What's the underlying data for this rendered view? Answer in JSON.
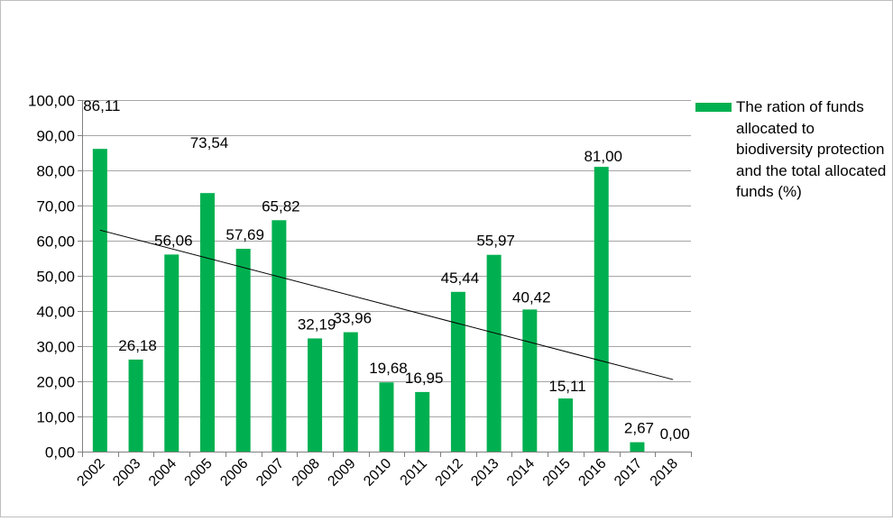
{
  "chart_data": {
    "type": "bar",
    "title": "",
    "xlabel": "",
    "ylabel": "",
    "categories": [
      "2002",
      "2003",
      "2004",
      "2005",
      "2006",
      "2007",
      "2008",
      "2009",
      "2010",
      "2011",
      "2012",
      "2013",
      "2014",
      "2015",
      "2016",
      "2017",
      "2018"
    ],
    "series": [
      {
        "name": "The ration of funds allocated to biodiversity protection and the total allocated funds (%)",
        "values": [
          86.11,
          26.18,
          56.06,
          73.54,
          57.69,
          65.82,
          32.19,
          33.96,
          19.68,
          16.95,
          45.44,
          55.97,
          40.42,
          15.11,
          81.0,
          2.67,
          0.0
        ],
        "data_labels": [
          "86,11",
          "26,18",
          "56,06",
          "73,54",
          "57,69",
          "65,82",
          "32,19",
          "33,96",
          "19,68",
          "16,95",
          "45,44",
          "55,97",
          "40,42",
          "15,11",
          "81,00",
          "2,67",
          "0,00"
        ],
        "color": "#00b050"
      }
    ],
    "ylim": [
      0,
      100
    ],
    "y_ticks": [
      0,
      10,
      20,
      30,
      40,
      50,
      60,
      70,
      80,
      90,
      100
    ],
    "y_tick_labels": [
      "0,00",
      "10,00",
      "20,00",
      "30,00",
      "40,00",
      "50,00",
      "60,00",
      "70,00",
      "80,00",
      "90,00",
      "100,00"
    ],
    "trendline": {
      "type": "linear",
      "from": [
        2002,
        63.0
      ],
      "to": [
        2018,
        20.5
      ],
      "color": "#000000"
    },
    "grid": true,
    "gridline_color": "#a6a6a6",
    "legend_position": "right"
  }
}
